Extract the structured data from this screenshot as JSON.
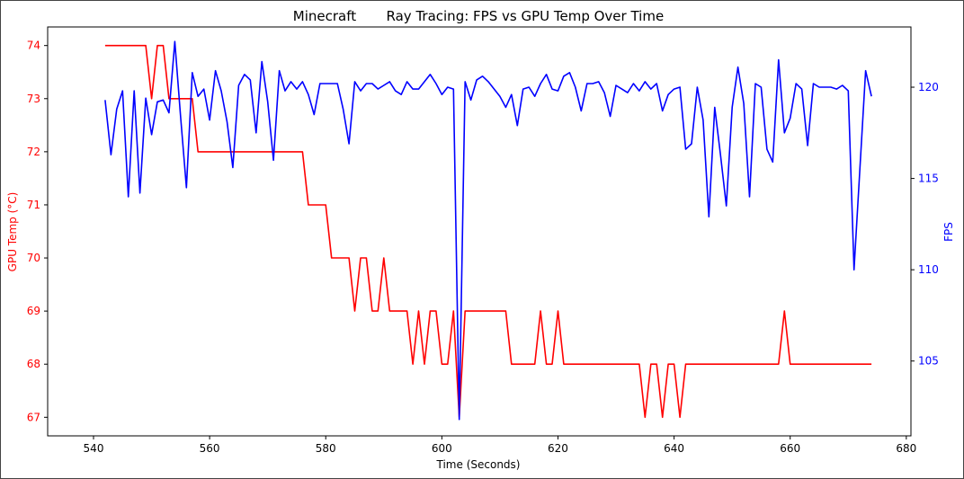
{
  "chart_data": {
    "type": "line",
    "title": "Minecraft       Ray Tracing: FPS vs GPU Temp Over Time",
    "xlabel": "Time (Seconds)",
    "ylabel_left": "GPU Temp (°C)",
    "ylabel_right": "FPS",
    "xlim": [
      532.1,
      680.8
    ],
    "ylim_left": [
      66.65,
      74.35
    ],
    "ylim_right": [
      100.9,
      123.3
    ],
    "grid": false,
    "x_ticks": [
      "540",
      "560",
      "580",
      "600",
      "620",
      "640",
      "660",
      "680"
    ],
    "y_ticks_left": [
      "67",
      "68",
      "69",
      "70",
      "71",
      "72",
      "73",
      "74"
    ],
    "y_ticks_right": [
      "105",
      "110",
      "115",
      "120"
    ],
    "colors": {
      "temp": "#ff0000",
      "fps": "#0000ff",
      "axis": "#000000"
    },
    "x": [
      542,
      543,
      544,
      545,
      546,
      547,
      548,
      549,
      550,
      551,
      552,
      553,
      554,
      555,
      556,
      557,
      558,
      559,
      560,
      561,
      562,
      563,
      564,
      565,
      566,
      567,
      568,
      569,
      570,
      571,
      572,
      573,
      574,
      575,
      576,
      577,
      578,
      579,
      580,
      581,
      582,
      583,
      584,
      585,
      586,
      587,
      588,
      589,
      590,
      591,
      592,
      593,
      594,
      595,
      596,
      597,
      598,
      599,
      600,
      601,
      602,
      603,
      604,
      605,
      606,
      607,
      608,
      609,
      610,
      611,
      612,
      613,
      614,
      615,
      616,
      617,
      618,
      619,
      620,
      621,
      622,
      623,
      624,
      625,
      626,
      627,
      628,
      629,
      630,
      631,
      632,
      633,
      634,
      635,
      636,
      637,
      638,
      639,
      640,
      641,
      642,
      643,
      644,
      645,
      646,
      647,
      648,
      649,
      650,
      651,
      652,
      653,
      654,
      655,
      656,
      657,
      658,
      659,
      660,
      661,
      662,
      663,
      664,
      665,
      666,
      667,
      668,
      669,
      670,
      671,
      672,
      673,
      674
    ],
    "series": [
      {
        "key": "temp",
        "axis": "left",
        "values": [
          74,
          74,
          74,
          74,
          74,
          74,
          74,
          74,
          73,
          74,
          74,
          73,
          73,
          73,
          73,
          73,
          72,
          72,
          72,
          72,
          72,
          72,
          72,
          72,
          72,
          72,
          72,
          72,
          72,
          72,
          72,
          72,
          72,
          72,
          72,
          71,
          71,
          71,
          71,
          70,
          70,
          70,
          70,
          69,
          70,
          70,
          69,
          69,
          70,
          69,
          69,
          69,
          69,
          68,
          69,
          68,
          69,
          69,
          68,
          68,
          69,
          67,
          69,
          69,
          69,
          69,
          69,
          69,
          69,
          69,
          68,
          68,
          68,
          68,
          68,
          69,
          68,
          68,
          69,
          68,
          68,
          68,
          68,
          68,
          68,
          68,
          68,
          68,
          68,
          68,
          68,
          68,
          68,
          67,
          68,
          68,
          67,
          68,
          68,
          67,
          68,
          68,
          68,
          68,
          68,
          68,
          68,
          68,
          68,
          68,
          68,
          68,
          68,
          68,
          68,
          68,
          68,
          69,
          68,
          68,
          68,
          68,
          68,
          68,
          68,
          68,
          68,
          68,
          68,
          68,
          68,
          68,
          68
        ]
      },
      {
        "key": "fps",
        "axis": "right",
        "values": [
          119.3,
          116.3,
          118.8,
          119.8,
          114,
          119.8,
          114.2,
          119.4,
          117.4,
          119.2,
          119.3,
          118.6,
          122.5,
          118.4,
          114.5,
          120.8,
          119.5,
          119.9,
          118.2,
          120.9,
          119.8,
          118.1,
          115.6,
          120.1,
          120.7,
          120.4,
          117.5,
          121.4,
          119.2,
          116,
          120.9,
          119.8,
          120.3,
          119.9,
          120.3,
          119.6,
          118.5,
          120.2,
          120.2,
          120.2,
          120.2,
          118.8,
          116.9,
          120.3,
          119.8,
          120.2,
          120.2,
          119.9,
          120.1,
          120.3,
          119.8,
          119.6,
          120.3,
          119.9,
          119.9,
          120.3,
          120.7,
          120.2,
          119.6,
          120,
          119.9,
          101.8,
          120.3,
          119.3,
          120.4,
          120.6,
          120.3,
          119.9,
          119.5,
          118.9,
          119.6,
          117.9,
          119.9,
          120,
          119.5,
          120.2,
          120.7,
          119.9,
          119.8,
          120.6,
          120.8,
          120,
          118.7,
          120.2,
          120.2,
          120.3,
          119.7,
          118.4,
          120.1,
          119.9,
          119.7,
          120.2,
          119.8,
          120.3,
          119.9,
          120.2,
          118.7,
          119.6,
          119.9,
          120,
          116.6,
          116.9,
          120,
          118.2,
          112.9,
          118.9,
          116.3,
          113.5,
          118.9,
          121.1,
          119.1,
          114,
          120.2,
          120,
          116.6,
          115.9,
          121.5,
          117.5,
          118.3,
          120.2,
          119.9,
          116.8,
          120.2,
          120,
          120,
          120,
          119.9,
          120.1,
          119.8,
          110,
          115.5,
          120.9,
          119.5
        ]
      }
    ]
  }
}
